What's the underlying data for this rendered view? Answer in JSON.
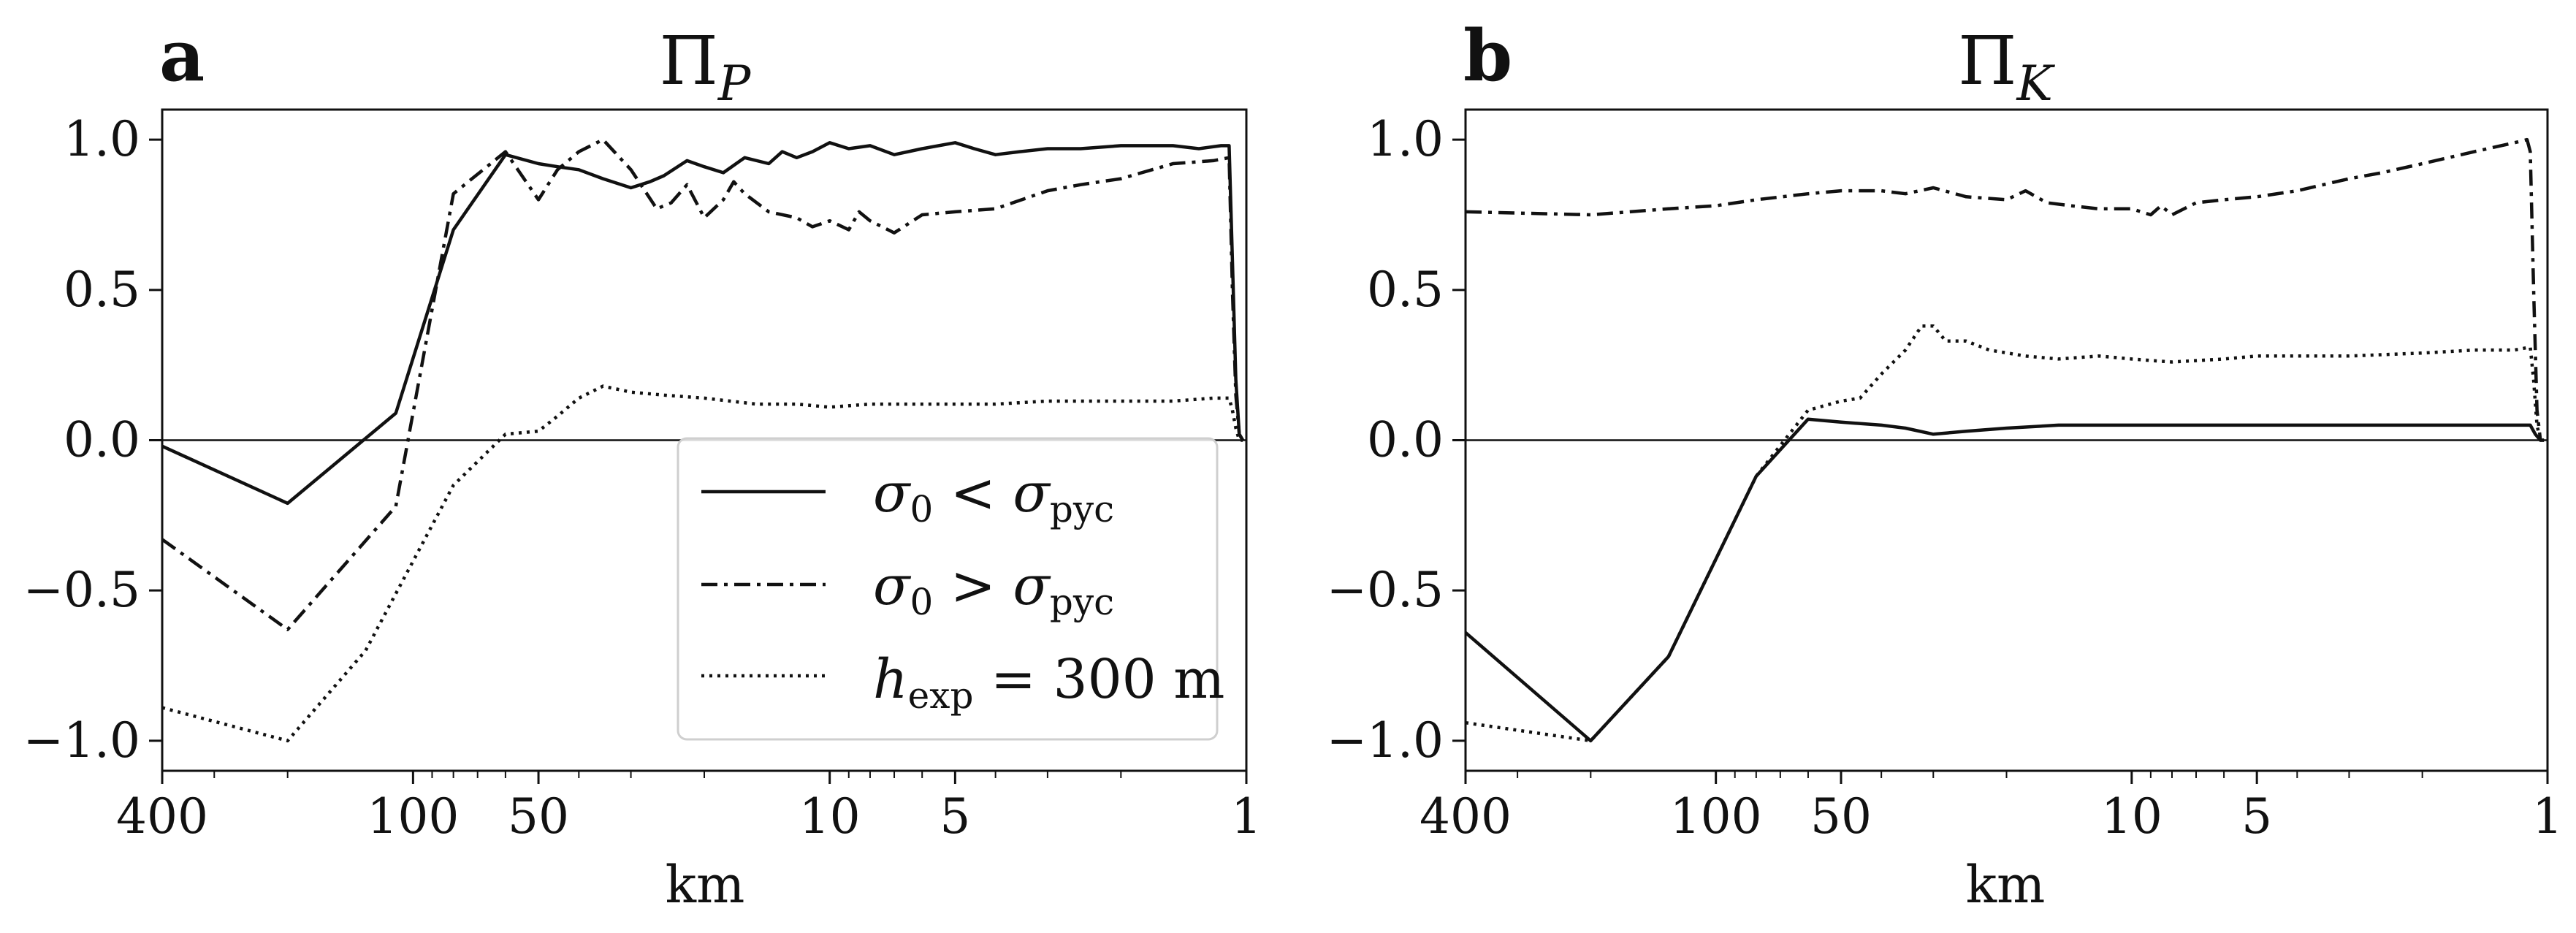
{
  "styles": {
    "solid": "",
    "dashdot": "22 9 5 9",
    "dotted": "4 7"
  },
  "legend": {
    "placement": "lower right (panel a)",
    "entries": [
      {
        "style": "solid",
        "name": "σ₀ < σ_pyc"
      },
      {
        "style": "dashdot",
        "name": "σ₀ > σ_pyc"
      },
      {
        "style": "dotted",
        "name": "h_exp = 300 m"
      }
    ]
  },
  "chart_data": [
    {
      "type": "line",
      "panel": "a",
      "title": "Π_P",
      "xlabel": "km",
      "ylabel": "",
      "xscale": "log",
      "xlim": [
        400,
        1
      ],
      "ylim": [
        -1.1,
        1.1
      ],
      "x_ticks": [
        400,
        100,
        50,
        10,
        5,
        1
      ],
      "y_ticks": [
        "−1.0",
        "−0.5",
        "0.0",
        "0.5",
        "1.0"
      ],
      "grid": false,
      "zero_line": true,
      "series": [
        {
          "name": "σ₀ < σ_pyc",
          "style": "solid",
          "points": [
            [
              400,
              -0.02
            ],
            [
              200,
              -0.21
            ],
            [
              110,
              0.09
            ],
            [
              80,
              0.7
            ],
            [
              60,
              0.95
            ],
            [
              50,
              0.92
            ],
            [
              45,
              0.91
            ],
            [
              40,
              0.9
            ],
            [
              35,
              0.87
            ],
            [
              30,
              0.84
            ],
            [
              27,
              0.86
            ],
            [
              25,
              0.88
            ],
            [
              22,
              0.93
            ],
            [
              20,
              0.91
            ],
            [
              18,
              0.89
            ],
            [
              16,
              0.94
            ],
            [
              14,
              0.92
            ],
            [
              13,
              0.96
            ],
            [
              12,
              0.94
            ],
            [
              11,
              0.96
            ],
            [
              10,
              0.99
            ],
            [
              9,
              0.97
            ],
            [
              8,
              0.98
            ],
            [
              7,
              0.95
            ],
            [
              6,
              0.97
            ],
            [
              5,
              0.99
            ],
            [
              4.5,
              0.97
            ],
            [
              4,
              0.95
            ],
            [
              3.5,
              0.96
            ],
            [
              3,
              0.97
            ],
            [
              2.5,
              0.97
            ],
            [
              2,
              0.98
            ],
            [
              1.7,
              0.98
            ],
            [
              1.5,
              0.98
            ],
            [
              1.3,
              0.97
            ],
            [
              1.15,
              0.98
            ],
            [
              1.1,
              0.98
            ],
            [
              1.08,
              0.6
            ],
            [
              1.06,
              0.2
            ],
            [
              1.04,
              0.02
            ],
            [
              1.02,
              0.0
            ]
          ]
        },
        {
          "name": "σ₀ > σ_pyc",
          "style": "dashdot",
          "points": [
            [
              400,
              -0.33
            ],
            [
              200,
              -0.63
            ],
            [
              110,
              -0.22
            ],
            [
              80,
              0.82
            ],
            [
              60,
              0.96
            ],
            [
              50,
              0.8
            ],
            [
              45,
              0.9
            ],
            [
              40,
              0.96
            ],
            [
              35,
              1.0
            ],
            [
              30,
              0.9
            ],
            [
              26,
              0.77
            ],
            [
              24,
              0.79
            ],
            [
              22,
              0.85
            ],
            [
              20,
              0.74
            ],
            [
              18,
              0.8
            ],
            [
              17,
              0.86
            ],
            [
              16,
              0.82
            ],
            [
              14,
              0.76
            ],
            [
              12,
              0.74
            ],
            [
              11,
              0.71
            ],
            [
              10,
              0.73
            ],
            [
              9,
              0.7
            ],
            [
              8.5,
              0.76
            ],
            [
              8,
              0.73
            ],
            [
              7,
              0.69
            ],
            [
              6,
              0.75
            ],
            [
              5,
              0.76
            ],
            [
              4,
              0.77
            ],
            [
              3,
              0.83
            ],
            [
              2.5,
              0.85
            ],
            [
              2,
              0.87
            ],
            [
              1.5,
              0.92
            ],
            [
              1.2,
              0.93
            ],
            [
              1.1,
              0.94
            ],
            [
              1.08,
              0.5
            ],
            [
              1.06,
              0.15
            ],
            [
              1.04,
              0.02
            ],
            [
              1.02,
              0.0
            ]
          ]
        },
        {
          "name": "h_exp = 300 m",
          "style": "dotted",
          "points": [
            [
              400,
              -0.89
            ],
            [
              200,
              -1.0
            ],
            [
              130,
              -0.7
            ],
            [
              80,
              -0.15
            ],
            [
              60,
              0.02
            ],
            [
              50,
              0.03
            ],
            [
              45,
              0.08
            ],
            [
              40,
              0.14
            ],
            [
              35,
              0.18
            ],
            [
              30,
              0.16
            ],
            [
              25,
              0.15
            ],
            [
              20,
              0.14
            ],
            [
              15,
              0.12
            ],
            [
              12,
              0.12
            ],
            [
              10,
              0.11
            ],
            [
              8,
              0.12
            ],
            [
              6,
              0.12
            ],
            [
              5,
              0.12
            ],
            [
              4,
              0.12
            ],
            [
              3,
              0.13
            ],
            [
              2,
              0.13
            ],
            [
              1.5,
              0.13
            ],
            [
              1.2,
              0.14
            ],
            [
              1.1,
              0.14
            ],
            [
              1.08,
              0.1
            ],
            [
              1.06,
              0.04
            ],
            [
              1.04,
              0.0
            ],
            [
              1.02,
              0.0
            ]
          ]
        }
      ]
    },
    {
      "type": "line",
      "panel": "b",
      "title": "Π_K",
      "xlabel": "km",
      "ylabel": "",
      "xscale": "log",
      "xlim": [
        400,
        1
      ],
      "ylim": [
        -1.1,
        1.1
      ],
      "x_ticks": [
        400,
        100,
        50,
        10,
        5,
        1
      ],
      "y_ticks": [
        "−1.0",
        "−0.5",
        "0.0",
        "0.5",
        "1.0"
      ],
      "grid": false,
      "zero_line": true,
      "series": [
        {
          "name": "σ₀ < σ_pyc",
          "style": "solid",
          "points": [
            [
              400,
              -0.64
            ],
            [
              200,
              -1.0
            ],
            [
              130,
              -0.72
            ],
            [
              80,
              -0.12
            ],
            [
              60,
              0.07
            ],
            [
              50,
              0.06
            ],
            [
              40,
              0.05
            ],
            [
              35,
              0.04
            ],
            [
              30,
              0.02
            ],
            [
              25,
              0.03
            ],
            [
              20,
              0.04
            ],
            [
              15,
              0.05
            ],
            [
              10,
              0.05
            ],
            [
              5,
              0.05
            ],
            [
              3,
              0.05
            ],
            [
              2,
              0.05
            ],
            [
              1.5,
              0.05
            ],
            [
              1.2,
              0.05
            ],
            [
              1.1,
              0.05
            ],
            [
              1.07,
              0.02
            ],
            [
              1.04,
              0.0
            ],
            [
              1.02,
              0.0
            ]
          ]
        },
        {
          "name": "σ₀ > σ_pyc",
          "style": "dashdot",
          "points": [
            [
              400,
              0.76
            ],
            [
              200,
              0.75
            ],
            [
              130,
              0.77
            ],
            [
              100,
              0.78
            ],
            [
              80,
              0.8
            ],
            [
              60,
              0.82
            ],
            [
              50,
              0.83
            ],
            [
              40,
              0.83
            ],
            [
              35,
              0.82
            ],
            [
              30,
              0.84
            ],
            [
              25,
              0.81
            ],
            [
              20,
              0.8
            ],
            [
              18,
              0.83
            ],
            [
              16,
              0.79
            ],
            [
              14,
              0.78
            ],
            [
              12,
              0.77
            ],
            [
              10,
              0.77
            ],
            [
              9,
              0.75
            ],
            [
              8.5,
              0.78
            ],
            [
              8,
              0.75
            ],
            [
              7,
              0.79
            ],
            [
              6,
              0.8
            ],
            [
              5,
              0.81
            ],
            [
              4,
              0.83
            ],
            [
              3,
              0.87
            ],
            [
              2.5,
              0.89
            ],
            [
              2,
              0.92
            ],
            [
              1.5,
              0.96
            ],
            [
              1.2,
              0.99
            ],
            [
              1.12,
              1.0
            ],
            [
              1.1,
              0.96
            ],
            [
              1.08,
              0.5
            ],
            [
              1.06,
              0.1
            ],
            [
              1.04,
              0.0
            ],
            [
              1.02,
              0.0
            ]
          ]
        },
        {
          "name": "h_exp = 300 m",
          "style": "dotted",
          "points": [
            [
              400,
              -0.94
            ],
            [
              200,
              -1.0
            ],
            [
              130,
              -0.72
            ],
            [
              80,
              -0.12
            ],
            [
              60,
              0.1
            ],
            [
              50,
              0.13
            ],
            [
              45,
              0.14
            ],
            [
              40,
              0.22
            ],
            [
              35,
              0.3
            ],
            [
              32,
              0.38
            ],
            [
              30,
              0.38
            ],
            [
              28,
              0.33
            ],
            [
              25,
              0.33
            ],
            [
              22,
              0.3
            ],
            [
              18,
              0.28
            ],
            [
              15,
              0.27
            ],
            [
              12,
              0.28
            ],
            [
              10,
              0.27
            ],
            [
              8,
              0.26
            ],
            [
              6,
              0.27
            ],
            [
              5,
              0.28
            ],
            [
              4,
              0.28
            ],
            [
              3,
              0.28
            ],
            [
              2,
              0.29
            ],
            [
              1.5,
              0.3
            ],
            [
              1.2,
              0.3
            ],
            [
              1.1,
              0.31
            ],
            [
              1.08,
              0.2
            ],
            [
              1.06,
              0.05
            ],
            [
              1.04,
              0.0
            ],
            [
              1.02,
              0.0
            ]
          ]
        }
      ]
    }
  ]
}
